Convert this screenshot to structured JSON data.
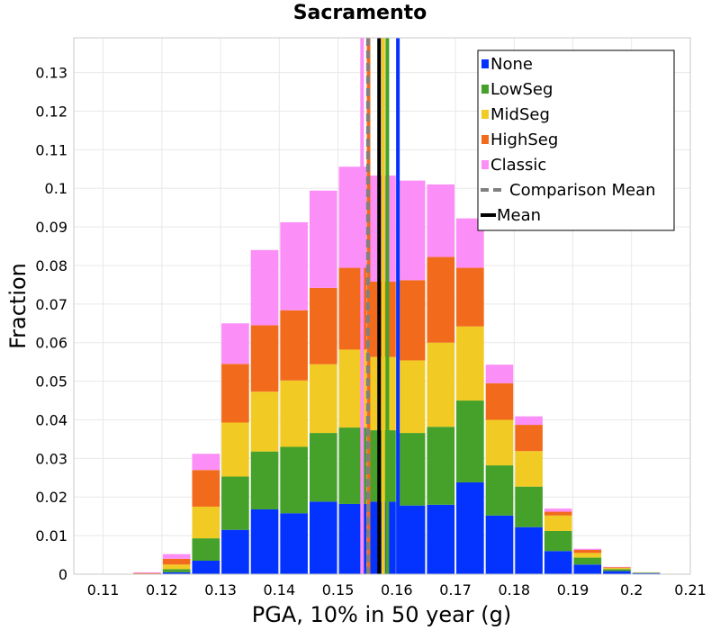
{
  "chart_data": {
    "type": "bar",
    "stacked": true,
    "title": "Sacramento",
    "xlabel": "PGA, 10% in 50 year (g)",
    "ylabel": "Fraction",
    "xlim": [
      0.105,
      0.21
    ],
    "ylim": [
      0,
      0.139
    ],
    "xticks": [
      "0.11",
      "0.12",
      "0.13",
      "0.14",
      "0.15",
      "0.16",
      "0.17",
      "0.18",
      "0.19",
      "0.2",
      "0.21"
    ],
    "yticks": [
      "0",
      "0.01",
      "0.02",
      "0.03",
      "0.04",
      "0.05",
      "0.06",
      "0.07",
      "0.08",
      "0.09",
      "0.1",
      "0.11",
      "0.12",
      "0.13"
    ],
    "grid": true,
    "legend_position": "top-right",
    "bin_width": 0.005,
    "bin_centers": [
      0.1125,
      0.1175,
      0.1225,
      0.1275,
      0.1325,
      0.1375,
      0.1425,
      0.1475,
      0.1525,
      0.1575,
      0.1625,
      0.1675,
      0.1725,
      0.1775,
      0.1825,
      0.1875,
      0.1925,
      0.1975,
      0.2025
    ],
    "series": [
      {
        "name": "None",
        "color": "#0433ff",
        "values": [
          0,
          0,
          0.0005,
          0.0035,
          0.0115,
          0.0168,
          0.0158,
          0.0188,
          0.0182,
          0.0188,
          0.0178,
          0.018,
          0.0238,
          0.0152,
          0.0122,
          0.006,
          0.0025,
          0.0008,
          0.0003
        ]
      },
      {
        "name": "LowSeg",
        "color": "#45a12a",
        "values": [
          0,
          0,
          0.0008,
          0.0058,
          0.0138,
          0.015,
          0.0172,
          0.0178,
          0.0198,
          0.0185,
          0.0188,
          0.0202,
          0.0212,
          0.013,
          0.0105,
          0.0052,
          0.0018,
          0.0005,
          0.0001
        ]
      },
      {
        "name": "MidSeg",
        "color": "#f1cb24",
        "values": [
          0,
          0.0001,
          0.0012,
          0.0082,
          0.014,
          0.0155,
          0.0172,
          0.0178,
          0.0202,
          0.019,
          0.0188,
          0.0218,
          0.0192,
          0.0118,
          0.0092,
          0.004,
          0.0012,
          0.0003,
          0.0001
        ]
      },
      {
        "name": "HighSeg",
        "color": "#f26b1c",
        "values": [
          0,
          0.0002,
          0.0015,
          0.0095,
          0.0152,
          0.0172,
          0.0182,
          0.0198,
          0.0212,
          0.0195,
          0.0208,
          0.0222,
          0.0152,
          0.0095,
          0.0068,
          0.001,
          0.0008,
          0.0002,
          0
        ]
      },
      {
        "name": "Classic",
        "color": "#fb8ef7",
        "values": [
          0.0001,
          0.0002,
          0.0012,
          0.0042,
          0.0105,
          0.0195,
          0.0228,
          0.0252,
          0.0262,
          0.0275,
          0.0258,
          0.0188,
          0.0128,
          0.0048,
          0.0022,
          0.0008,
          0.0003,
          0.0001,
          0
        ]
      }
    ],
    "mean_lines": [
      {
        "label": "Classic",
        "value": 0.1541,
        "color": "#fb8ef7",
        "width": 4,
        "top": 0.139
      },
      {
        "label": "HighSeg",
        "value": 0.1552,
        "color": "#f26b1c",
        "width": 4,
        "top": 0.139
      },
      {
        "label": "Comparison Mean",
        "value": 0.1551,
        "color": "#808080",
        "width": 4,
        "dashed": true,
        "top": 0.139
      },
      {
        "label": "MidSeg",
        "value": 0.1577,
        "color": "#f1cb24",
        "width": 4,
        "top": 0.139
      },
      {
        "label": "LowSeg",
        "value": 0.1584,
        "color": "#45a12a",
        "width": 4,
        "top": 0.139
      },
      {
        "label": "None",
        "value": 0.1602,
        "color": "#0433ff",
        "width": 4,
        "top": 0.139
      },
      {
        "label": "Mean",
        "value": 0.157,
        "color": "#000000",
        "width": 4,
        "top": 0.139
      }
    ],
    "legend": [
      {
        "label": "None",
        "color": "#0433ff",
        "kind": "box"
      },
      {
        "label": "LowSeg",
        "color": "#45a12a",
        "kind": "box"
      },
      {
        "label": "MidSeg",
        "color": "#f1cb24",
        "kind": "box"
      },
      {
        "label": "HighSeg",
        "color": "#f26b1c",
        "kind": "box"
      },
      {
        "label": "Classic",
        "color": "#fb8ef7",
        "kind": "box"
      },
      {
        "label": "Comparison Mean",
        "color": "#808080",
        "kind": "dashed"
      },
      {
        "label": "Mean",
        "color": "#000000",
        "kind": "line"
      }
    ]
  }
}
